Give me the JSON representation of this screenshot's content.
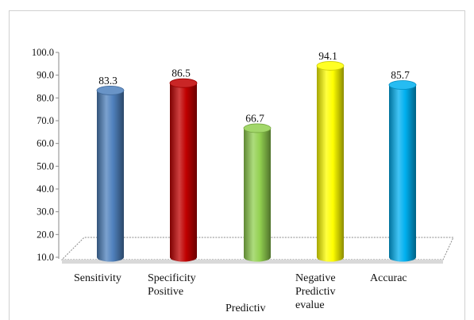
{
  "chart_data": {
    "type": "bar",
    "categories": [
      "Sensitivity",
      "Specificity Positive",
      "Predictiv",
      "Negative Predictiv evalue",
      "Accurac"
    ],
    "values": [
      83.3,
      86.5,
      66.7,
      94.1,
      85.7
    ],
    "data_labels": [
      "83.3",
      "86.5",
      "66.7",
      "94.1",
      "85.7"
    ],
    "title": "",
    "xlabel": "",
    "ylabel": "",
    "ylim": [
      10.0,
      100.0
    ],
    "y_ticks": [
      "10.0",
      "20.0",
      "30.0",
      "40.0",
      "50.0",
      "60.0",
      "70.0",
      "80.0",
      "90.0",
      "100.0"
    ],
    "x_label_lines": [
      [
        "Sensitivity"
      ],
      [
        "Specificity",
        "Positive"
      ],
      [
        "Predictiv"
      ],
      [
        "Negative",
        "Predictiv",
        "evalue"
      ],
      [
        "Accurac"
      ]
    ],
    "colors": [
      "#4f81bd",
      "#c00000",
      "#92d050",
      "#ffff00",
      "#00b0f0"
    ],
    "grid": false,
    "legend": "none",
    "style": "3d-cylinder"
  }
}
